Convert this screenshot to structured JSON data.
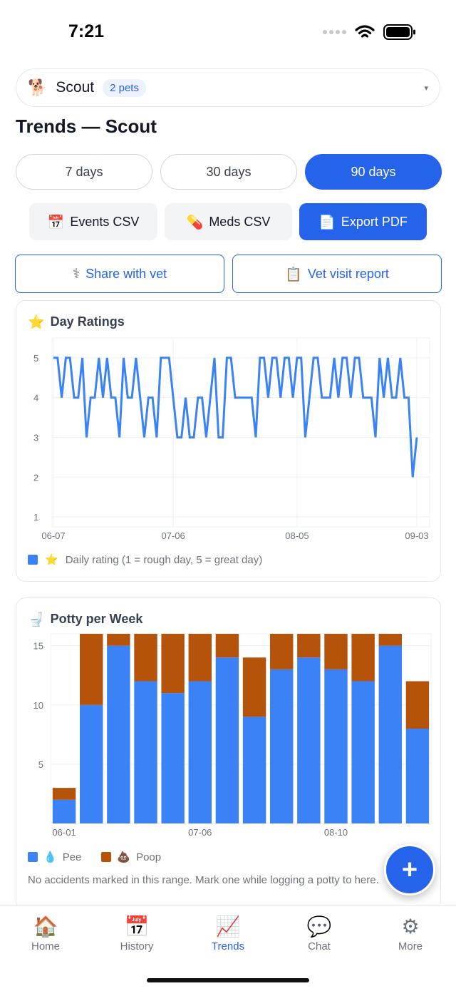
{
  "status_bar": {
    "time": "7:21"
  },
  "pet_selector": {
    "emoji": "🐕",
    "name": "Scout",
    "badge": "2 pets",
    "chevron": "▾"
  },
  "page_title": "Trends — Scout",
  "range_tabs": [
    {
      "label": "7 days",
      "active": false
    },
    {
      "label": "30 days",
      "active": false
    },
    {
      "label": "90 days",
      "active": true
    }
  ],
  "export_buttons": [
    {
      "icon": "📅",
      "label": "Events CSV"
    },
    {
      "icon": "💊",
      "label": "Meds CSV"
    },
    {
      "icon": "📄",
      "label": "Export PDF"
    }
  ],
  "vet_buttons": [
    {
      "icon": "⚕",
      "label": "Share with vet"
    },
    {
      "icon": "📋",
      "label": "Vet visit report"
    }
  ],
  "ratings_card": {
    "icon": "⭐",
    "title": "Day Ratings",
    "legend_icon": "⭐",
    "legend_label": "Daily rating (1 = rough day, 5 = great day)",
    "legend_color": "#3b82f6"
  },
  "potty_card": {
    "icon": "🚽",
    "title": "Potty per Week",
    "legend": [
      {
        "icon": "💧",
        "label": "Pee",
        "color": "#3b82f6"
      },
      {
        "icon": "💩",
        "label": "Poop",
        "color": "#b45309"
      }
    ],
    "note": "No accidents marked in this range. Mark one while logging a potty to here."
  },
  "chart_data": [
    {
      "type": "line",
      "title": "Day Ratings",
      "x_ticks": [
        "06-07",
        "07-06",
        "08-05",
        "09-03"
      ],
      "x_tick_index": [
        0,
        29,
        59,
        88
      ],
      "y_ticks": [
        1,
        2,
        3,
        4,
        5
      ],
      "ylim": [
        0.75,
        5.5
      ],
      "series": [
        {
          "name": "Daily rating (1 = rough day, 5 = great day)",
          "color": "#3b82f6",
          "values": [
            5,
            5,
            4,
            5,
            5,
            4,
            4,
            5,
            3,
            4,
            4,
            5,
            4,
            5,
            4,
            4,
            3,
            5,
            4,
            4,
            5,
            4,
            3,
            4,
            4,
            3,
            5,
            5,
            5,
            4,
            3,
            3,
            4,
            3,
            3,
            4,
            4,
            3,
            4,
            5,
            3,
            3,
            5,
            5,
            4,
            4,
            4,
            4,
            4,
            3,
            5,
            5,
            4,
            5,
            5,
            4,
            5,
            5,
            4,
            5,
            5,
            3,
            4,
            5,
            5,
            4,
            4,
            4,
            5,
            4,
            5,
            5,
            4,
            5,
            5,
            4,
            4,
            4,
            3,
            5,
            4,
            5,
            4,
            4,
            5,
            4,
            4,
            2,
            3
          ]
        }
      ],
      "grid": true,
      "legend": "bottom-left"
    },
    {
      "type": "bar",
      "stacked": true,
      "title": "Potty per Week",
      "categories": [
        "06-01",
        "06-08",
        "06-15",
        "06-22",
        "06-29",
        "07-06",
        "07-13",
        "07-20",
        "07-27",
        "08-03",
        "08-10",
        "08-17",
        "08-24",
        "08-31"
      ],
      "x_tick_labels": [
        "06-01",
        "07-06",
        "08-10"
      ],
      "y_ticks": [
        5,
        10,
        15
      ],
      "ylim": [
        0,
        16
      ],
      "series": [
        {
          "name": "Pee",
          "color": "#3b82f6",
          "values": [
            2,
            10,
            15,
            12,
            11,
            12,
            14,
            9,
            13,
            14,
            13,
            12,
            15,
            8
          ]
        },
        {
          "name": "Poop",
          "color": "#b45309",
          "values": [
            1,
            7,
            2,
            5,
            6,
            5,
            3,
            5,
            4,
            3,
            4,
            5,
            2,
            4
          ]
        }
      ],
      "grid": true,
      "legend": "bottom-left"
    }
  ],
  "fab": {
    "label": "+"
  },
  "tabbar": [
    {
      "icon": "🏠",
      "label": "Home",
      "active": false
    },
    {
      "icon": "📅",
      "label": "History",
      "active": false
    },
    {
      "icon": "📈",
      "label": "Trends",
      "active": true
    },
    {
      "icon": "💬",
      "label": "Chat",
      "active": false
    },
    {
      "icon": "⚙",
      "label": "More",
      "active": false
    }
  ]
}
